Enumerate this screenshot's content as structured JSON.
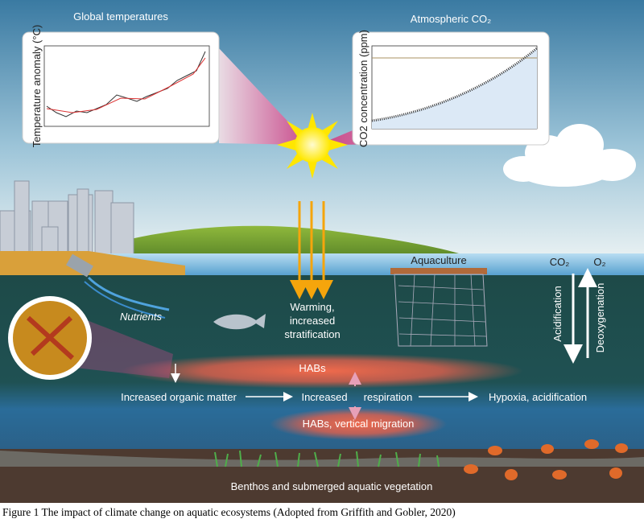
{
  "insets": [
    {
      "title": "Global temperatures",
      "y_axis_label": "Temperature anomaly (°C)"
    },
    {
      "title": "Atmospheric CO₂",
      "y_axis_label": "CO2 concentration (ppm)"
    }
  ],
  "labels": {
    "aquaculture": "Aquaculture",
    "co2": "CO₂",
    "o2": "O₂",
    "nutrients": "Nutrients",
    "warming": [
      "Warming,",
      "increased",
      "stratification"
    ],
    "acidification": "Acidification",
    "deoxygenation": "Deoxygenation",
    "habs": "HABs",
    "organic_matter": "Increased organic matter",
    "increased": "Increased",
    "respiration": "respiration",
    "hypoxia": "Hypoxia, acidification",
    "habs_migration": "HABs, vertical migration",
    "benthos": "Benthos and submerged aquatic vegetation"
  },
  "caption": "Figure 1 The impact of climate change on aquatic ecosystems (Adopted from Griffith and Gobler, 2020)"
}
